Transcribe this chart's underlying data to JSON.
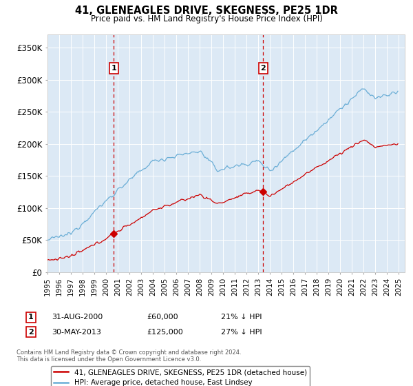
{
  "title": "41, GLENEAGLES DRIVE, SKEGNESS, PE25 1DR",
  "subtitle": "Price paid vs. HM Land Registry's House Price Index (HPI)",
  "hpi_label": "HPI: Average price, detached house, East Lindsey",
  "property_label": "41, GLENEAGLES DRIVE, SKEGNESS, PE25 1DR (detached house)",
  "hpi_color": "#6baed6",
  "price_color": "#cc0000",
  "bg_color": "#dce9f5",
  "annotation1": {
    "label": "1",
    "date": "31-AUG-2000",
    "price": "£60,000",
    "note": "21% ↓ HPI"
  },
  "annotation2": {
    "label": "2",
    "date": "30-MAY-2013",
    "price": "£125,000",
    "note": "27% ↓ HPI"
  },
  "footer": "Contains HM Land Registry data © Crown copyright and database right 2024.\nThis data is licensed under the Open Government Licence v3.0.",
  "ylim": [
    0,
    370000
  ],
  "yticks": [
    0,
    50000,
    100000,
    150000,
    200000,
    250000,
    300000,
    350000
  ],
  "ytick_labels": [
    "£0",
    "£50K",
    "£100K",
    "£150K",
    "£200K",
    "£250K",
    "£300K",
    "£350K"
  ],
  "sale1_year": 2000.667,
  "sale1_price": 60000,
  "sale2_year": 2013.417,
  "sale2_price": 125000,
  "xlim_left": 1995.0,
  "xlim_right": 2025.5
}
